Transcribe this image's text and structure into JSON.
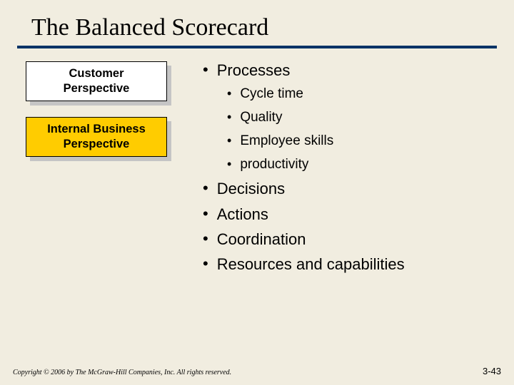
{
  "colors": {
    "background": "#f1ede0",
    "underline": "#003366",
    "box_white_bg": "#ffffff",
    "box_yellow_bg": "#ffcc00",
    "box_shadow": "#c5c5c5",
    "text": "#000000"
  },
  "title": "The Balanced Scorecard",
  "boxes": {
    "customer": {
      "line1": "Customer",
      "line2": "Perspective"
    },
    "internal": {
      "line1": "Internal Business",
      "line2": "Perspective"
    }
  },
  "bullets": {
    "l1_processes": "Processes",
    "l2_cycle": "Cycle time",
    "l2_quality": "Quality",
    "l2_skills": "Employee skills",
    "l2_productivity": "productivity",
    "l1_decisions": "Decisions",
    "l1_actions": "Actions",
    "l1_coordination": "Coordination",
    "l1_resources": "Resources and capabilities"
  },
  "footer": {
    "copyright": "Copyright © 2006 by The McGraw-Hill Companies, Inc.  All rights reserved.",
    "page": "3-43"
  },
  "typography": {
    "title_fontsize": 34,
    "l1_fontsize": 22,
    "l2_fontsize": 19,
    "box_fontsize": 16.5,
    "copyright_fontsize": 10,
    "page_fontsize": 13
  }
}
